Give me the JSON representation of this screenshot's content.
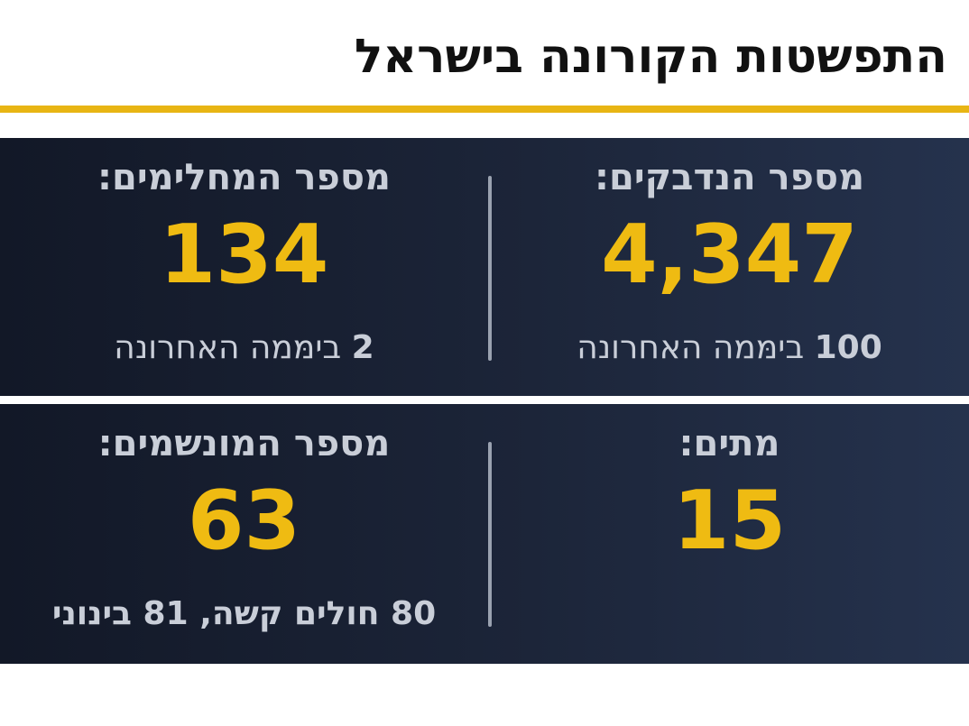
{
  "title": "התפשטות הקורונה בישראל",
  "colors": {
    "accent": "#efbb12",
    "line": "#e8b514",
    "panel_dark": "#121827",
    "panel_light": "#25324d",
    "label": "#c9ced8"
  },
  "stats": {
    "infected": {
      "label": "מספר הנדבקים:",
      "value": "4,347",
      "sub_number": "100",
      "sub_text": " בימּמה האחרונה"
    },
    "recovered": {
      "label": "מספר המחלימים:",
      "value": "134",
      "sub_number": "2",
      "sub_text": " בימּמה האחרונה"
    },
    "dead": {
      "label": "מתים:",
      "value": "15"
    },
    "ventilated": {
      "label": "מספר המונשמים:",
      "value": "63",
      "sub_text": "80 חולים קשה, 81 בינוני"
    }
  }
}
